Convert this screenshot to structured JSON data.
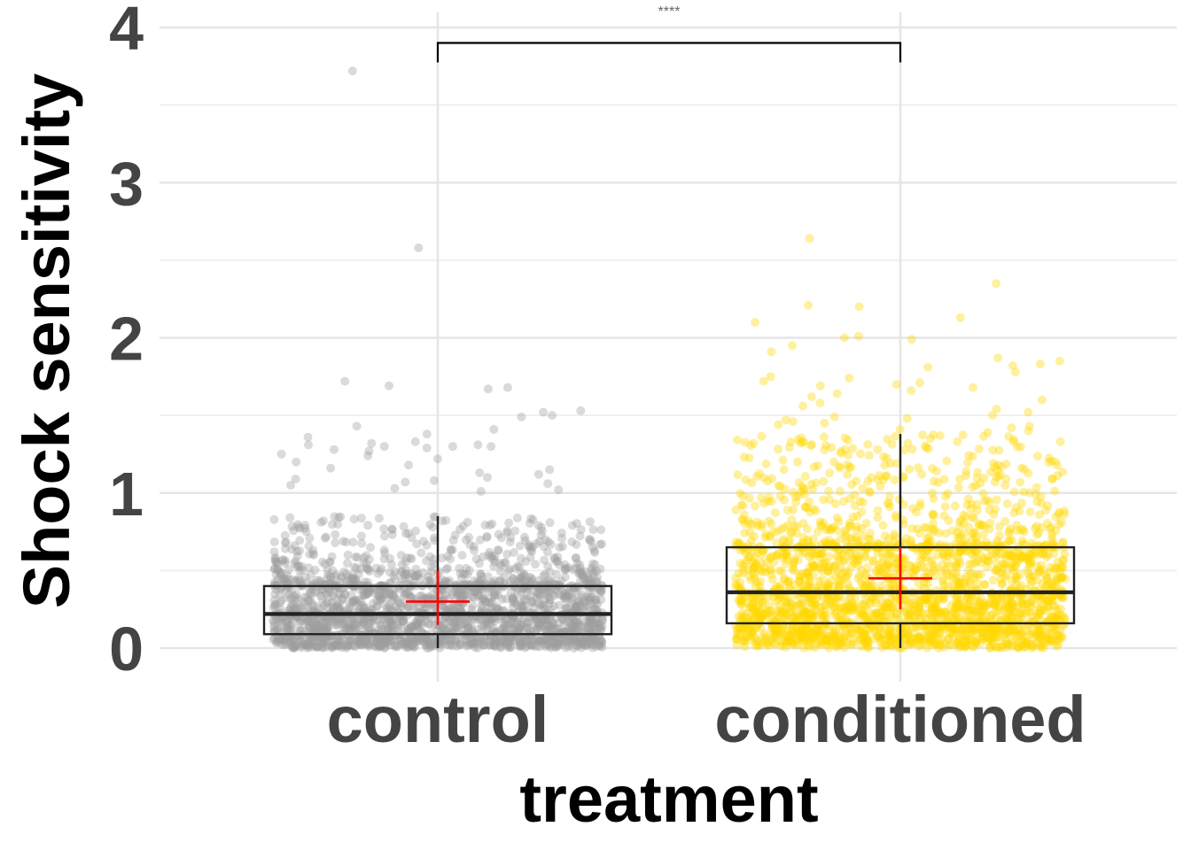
{
  "chart_data": {
    "type": "box",
    "title": "",
    "xlabel": "treatment",
    "ylabel": "Shock sensitivity",
    "ylim": [
      0,
      4
    ],
    "yticks": [
      "0",
      "1",
      "2",
      "3",
      "4"
    ],
    "grid": true,
    "legend": "none",
    "significance": {
      "label": "****",
      "between": [
        "control",
        "conditioned"
      ],
      "y": 3.9
    },
    "categories": [
      "control",
      "conditioned"
    ],
    "series": [
      {
        "category": "control",
        "color": "#9e9e9e",
        "box": {
          "q1": 0.09,
          "median": 0.22,
          "q3": 0.4,
          "whisker_low": 0.0,
          "whisker_high": 0.85
        },
        "mean": 0.3,
        "mean_ci": [
          0.15,
          0.5
        ],
        "n_points": 2200,
        "outliers": [
          3.72,
          2.58,
          1.72,
          1.69,
          1.68,
          1.67,
          1.53,
          1.52,
          1.5,
          1.49,
          1.43,
          1.41,
          1.38,
          1.36,
          1.33,
          1.32,
          1.31,
          1.31,
          1.3,
          1.3,
          1.3,
          1.29,
          1.28,
          1.27,
          1.25,
          1.24,
          1.22,
          1.2,
          1.18,
          1.16,
          1.15,
          1.13,
          1.12,
          1.1,
          1.09,
          1.08,
          1.07,
          1.06,
          1.05,
          1.03,
          1.02,
          1.01
        ]
      },
      {
        "category": "conditioned",
        "color": "#ffd700",
        "box": {
          "q1": 0.16,
          "median": 0.36,
          "q3": 0.65,
          "whisker_low": 0.0,
          "whisker_high": 1.38
        },
        "mean": 0.45,
        "mean_ci": [
          0.25,
          0.65
        ],
        "n_points": 2400,
        "outliers": [
          2.64,
          2.35,
          2.21,
          2.2,
          2.13,
          2.1,
          2.01,
          2.0,
          1.99,
          1.95,
          1.91,
          1.87,
          1.85,
          1.83,
          1.82,
          1.81,
          1.78,
          1.75,
          1.74,
          1.72,
          1.71,
          1.7,
          1.69,
          1.68,
          1.66,
          1.64,
          1.62,
          1.6,
          1.58,
          1.56,
          1.54,
          1.52,
          1.5,
          1.49,
          1.48,
          1.47,
          1.46,
          1.45,
          1.44,
          1.43,
          1.42,
          1.41,
          1.4,
          1.39
        ]
      }
    ]
  }
}
